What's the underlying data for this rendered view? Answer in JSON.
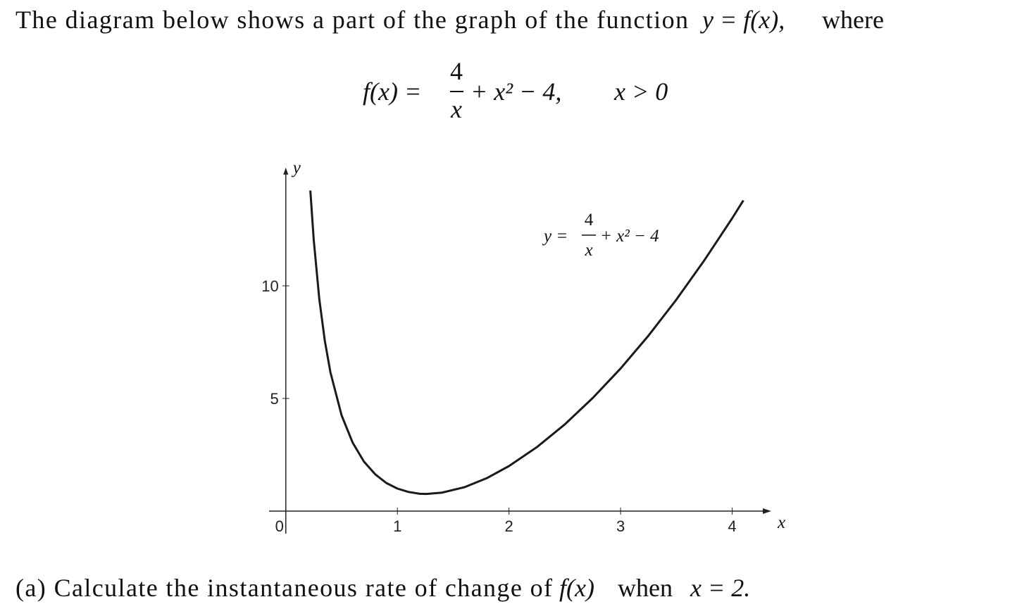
{
  "intro": {
    "text": "The diagram below shows a part of the graph of the function",
    "math": "y = f(x),",
    "end": "where"
  },
  "formula": {
    "lhs": "f(x) =",
    "numerator": "4",
    "denominator": "x",
    "rest": "+ x² − 4,",
    "condition": "x > 0"
  },
  "question": {
    "text": "(a) Calculate the instantaneous rate of change of",
    "math": "f(x)",
    "when": "when",
    "value": "x = 2."
  },
  "chart_data": {
    "type": "line",
    "x_label": "x",
    "y_label": "y",
    "origin_label": "0",
    "curve_label": {
      "lhs": "y =",
      "numerator": "4",
      "denominator": "x",
      "rest": "+ x² − 4"
    },
    "x": [
      0.22,
      0.25,
      0.3,
      0.35,
      0.4,
      0.5,
      0.6,
      0.7,
      0.8,
      0.9,
      1,
      1.1,
      1.2,
      1.26,
      1.4,
      1.6,
      1.8,
      2,
      2.25,
      2.5,
      2.75,
      3,
      3.25,
      3.5,
      3.75,
      4,
      4.1
    ],
    "values": [
      14.23,
      12.06,
      9.42,
      7.55,
      6.16,
      4.25,
      3.03,
      2.2,
      1.64,
      1.25,
      1,
      0.85,
      0.77,
      0.76,
      0.82,
      1.06,
      1.46,
      2,
      2.84,
      3.85,
      5.02,
      6.33,
      7.79,
      9.39,
      11.13,
      13,
      13.79
    ],
    "color": "#1a1a1a",
    "xlim": [
      -0.15,
      4.35
    ],
    "ylim": [
      -1,
      15.25
    ],
    "xticks": [
      1,
      2,
      3,
      4
    ],
    "yticks": [
      5,
      10
    ]
  }
}
